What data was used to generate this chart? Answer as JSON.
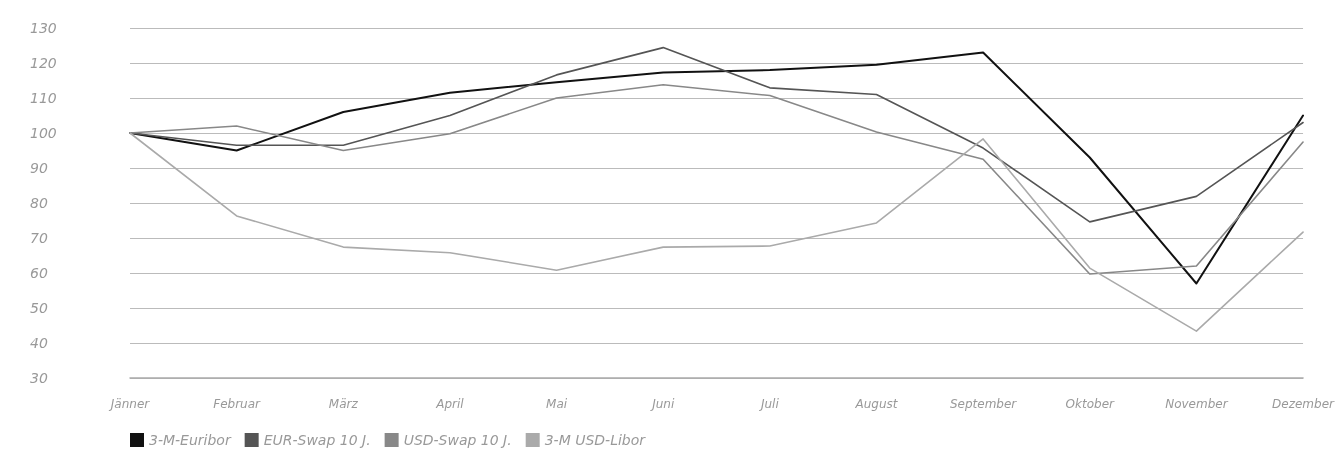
{
  "chart_data": {
    "type": "line",
    "categories": [
      "Jänner",
      "Februar",
      "März",
      "April",
      "Mai",
      "Juni",
      "Juli",
      "August",
      "September",
      "Oktober",
      "November",
      "Dezember"
    ],
    "series": [
      {
        "name": "3-M-Euribor",
        "color": "#111111",
        "values": [
          100,
          95,
          106,
          111.5,
          114.5,
          117.3,
          118,
          119.5,
          123,
          93,
          57,
          105
        ]
      },
      {
        "name": "EUR-Swap 10 J.",
        "color": "#555555",
        "values": [
          100,
          96.5,
          96.5,
          105,
          116.6,
          124.4,
          112.9,
          111,
          95.7,
          74.6,
          81.9,
          103
        ]
      },
      {
        "name": "USD-Swap 10 J.",
        "color": "#888888",
        "values": [
          100,
          102,
          95,
          99.8,
          110,
          113.8,
          110.7,
          100.3,
          92.5,
          59.7,
          62,
          97.4
        ]
      },
      {
        "name": "3-M USD-Libor",
        "color": "#aaaaaa",
        "values": [
          100,
          76.3,
          67.4,
          65.8,
          60.8,
          67.4,
          67.7,
          74.3,
          98.3,
          61.4,
          43.4,
          71.7
        ]
      }
    ],
    "ylim": [
      30,
      130
    ],
    "yticks": [
      30,
      40,
      50,
      60,
      70,
      80,
      90,
      100,
      110,
      120,
      130
    ],
    "grid": "y",
    "legend": "bottom left",
    "marker": "none",
    "line_style": "solid"
  }
}
